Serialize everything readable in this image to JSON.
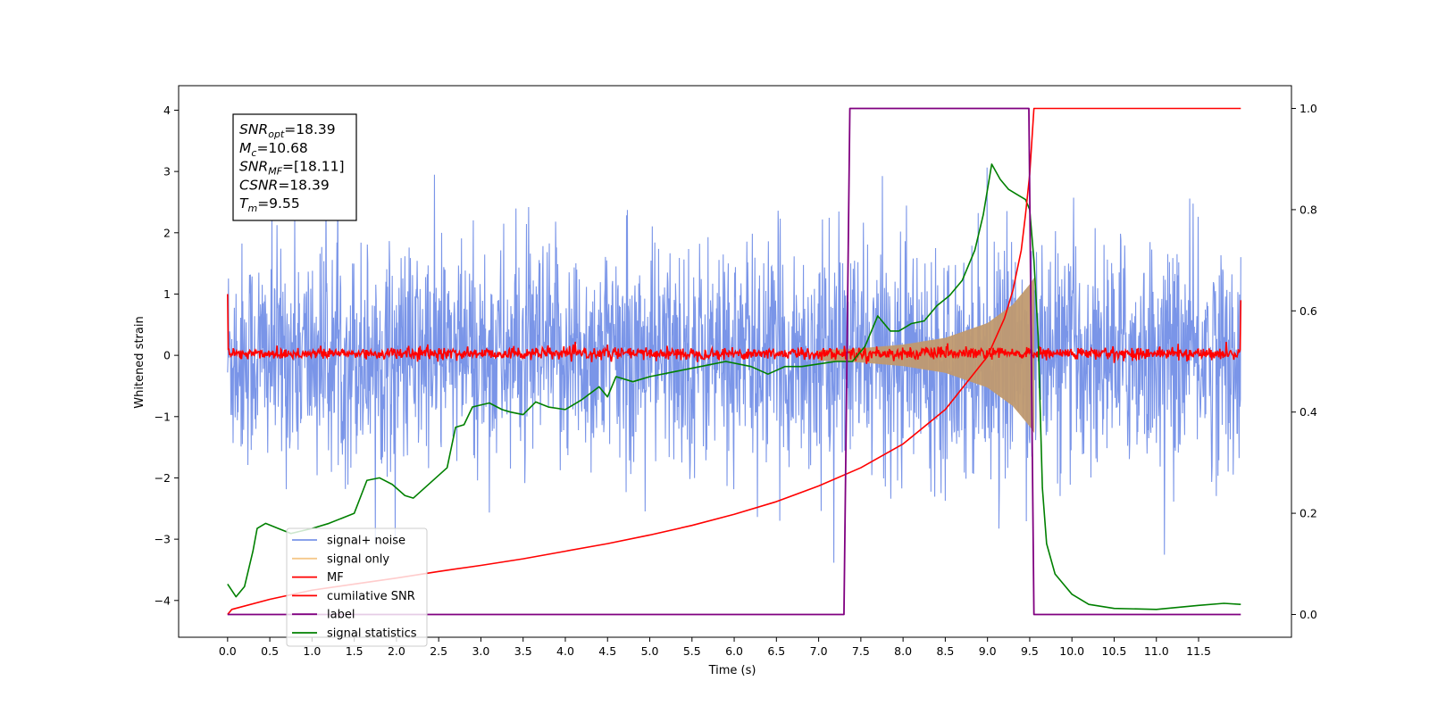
{
  "chart_data": {
    "type": "line",
    "title": "",
    "xlabel": "Time (s)",
    "ylabel": "Whitened strain",
    "xlim": [
      -0.58,
      12.6
    ],
    "ylim": [
      -4.6,
      4.4
    ],
    "y2lim": [
      -0.045,
      1.045
    ],
    "x_ticks": [
      "0.0",
      "0.5",
      "1.0",
      "1.5",
      "2.0",
      "2.5",
      "3.0",
      "3.5",
      "4.0",
      "4.5",
      "5.0",
      "5.5",
      "6.0",
      "6.5",
      "7.0",
      "7.5",
      "8.0",
      "8.5",
      "9.0",
      "9.5",
      "10.0",
      "10.5",
      "11.0",
      "11.5"
    ],
    "y_ticks": [
      "4",
      "3",
      "2",
      "1",
      "0",
      "−1",
      "−2",
      "−3",
      "−4"
    ],
    "y2_ticks": [
      "1.0",
      "0.8",
      "0.6",
      "0.4",
      "0.2",
      "0.0"
    ],
    "grid": false,
    "legend_position": "lower-left",
    "annotation": {
      "lines": [
        {
          "sym": "SNR",
          "sub": "opt",
          "val": "=18.39"
        },
        {
          "sym": "M",
          "sub": "c",
          "val": "=10.68"
        },
        {
          "sym": "SNR",
          "sub": "MF",
          "val": "=[18.11]"
        },
        {
          "sym": "CSNR",
          "sub": "",
          "val": "=18.39"
        },
        {
          "sym": "T",
          "sub": "m",
          "val": "=9.55"
        }
      ]
    },
    "series": [
      {
        "name": "signal+ noise",
        "color": "#7a95e8",
        "axis": "left",
        "description_values": {
          "x_range": [
            0.0,
            12.0
          ],
          "noise_std": 0.9,
          "spike_max": 4.0,
          "spike_min": -4.15
        }
      },
      {
        "name": "signal only",
        "color": "#f5c88a",
        "axis": "left",
        "envelope": {
          "x": [
            7.0,
            7.5,
            8.0,
            8.5,
            9.0,
            9.3,
            9.5,
            9.55
          ],
          "amp": [
            0.08,
            0.11,
            0.17,
            0.28,
            0.52,
            0.82,
            1.15,
            1.25
          ]
        }
      },
      {
        "name": "MF",
        "color": "#ff0000",
        "axis": "left",
        "values": {
          "x_start": 0.0,
          "x_end": 12.0,
          "start_value": 1.0,
          "end_value": 0.9,
          "noise_std": 0.05
        }
      },
      {
        "name": "cumilative SNR",
        "color": "#ff0000",
        "axis": "right",
        "points": [
          [
            0.0,
            0.0
          ],
          [
            0.05,
            0.01
          ],
          [
            0.5,
            0.03
          ],
          [
            1.0,
            0.048
          ],
          [
            1.5,
            0.06
          ],
          [
            2.0,
            0.072
          ],
          [
            2.5,
            0.085
          ],
          [
            3.0,
            0.097
          ],
          [
            3.5,
            0.11
          ],
          [
            4.0,
            0.125
          ],
          [
            4.5,
            0.14
          ],
          [
            5.0,
            0.157
          ],
          [
            5.5,
            0.176
          ],
          [
            6.0,
            0.198
          ],
          [
            6.5,
            0.223
          ],
          [
            7.0,
            0.254
          ],
          [
            7.5,
            0.29
          ],
          [
            8.0,
            0.337
          ],
          [
            8.5,
            0.405
          ],
          [
            9.0,
            0.51
          ],
          [
            9.2,
            0.585
          ],
          [
            9.3,
            0.64
          ],
          [
            9.4,
            0.72
          ],
          [
            9.45,
            0.79
          ],
          [
            9.5,
            0.87
          ],
          [
            9.55,
            1.0
          ],
          [
            12.0,
            1.0
          ]
        ]
      },
      {
        "name": "label",
        "color": "#800080",
        "axis": "right",
        "points": [
          [
            0.0,
            0.0
          ],
          [
            7.3,
            0.0
          ],
          [
            7.37,
            1.0
          ],
          [
            9.49,
            1.0
          ],
          [
            9.55,
            0.0
          ],
          [
            12.0,
            0.0
          ]
        ]
      },
      {
        "name": "signal statistics",
        "color": "#008000",
        "axis": "right",
        "points": [
          [
            0.0,
            0.06
          ],
          [
            0.1,
            0.035
          ],
          [
            0.2,
            0.055
          ],
          [
            0.3,
            0.125
          ],
          [
            0.35,
            0.17
          ],
          [
            0.45,
            0.18
          ],
          [
            0.6,
            0.17
          ],
          [
            0.75,
            0.16
          ],
          [
            1.0,
            0.17
          ],
          [
            1.2,
            0.18
          ],
          [
            1.5,
            0.2
          ],
          [
            1.65,
            0.265
          ],
          [
            1.8,
            0.27
          ],
          [
            1.95,
            0.257
          ],
          [
            2.1,
            0.235
          ],
          [
            2.2,
            0.23
          ],
          [
            2.4,
            0.26
          ],
          [
            2.6,
            0.29
          ],
          [
            2.7,
            0.37
          ],
          [
            2.8,
            0.375
          ],
          [
            2.9,
            0.41
          ],
          [
            3.1,
            0.418
          ],
          [
            3.25,
            0.405
          ],
          [
            3.35,
            0.4
          ],
          [
            3.5,
            0.395
          ],
          [
            3.65,
            0.42
          ],
          [
            3.8,
            0.41
          ],
          [
            4.0,
            0.405
          ],
          [
            4.2,
            0.425
          ],
          [
            4.4,
            0.45
          ],
          [
            4.5,
            0.43
          ],
          [
            4.6,
            0.47
          ],
          [
            4.8,
            0.46
          ],
          [
            5.0,
            0.47
          ],
          [
            5.3,
            0.48
          ],
          [
            5.6,
            0.49
          ],
          [
            5.9,
            0.5
          ],
          [
            6.2,
            0.49
          ],
          [
            6.4,
            0.475
          ],
          [
            6.6,
            0.49
          ],
          [
            6.8,
            0.49
          ],
          [
            7.0,
            0.495
          ],
          [
            7.2,
            0.5
          ],
          [
            7.4,
            0.5
          ],
          [
            7.55,
            0.53
          ],
          [
            7.7,
            0.59
          ],
          [
            7.85,
            0.56
          ],
          [
            7.95,
            0.56
          ],
          [
            8.1,
            0.575
          ],
          [
            8.25,
            0.58
          ],
          [
            8.4,
            0.61
          ],
          [
            8.55,
            0.63
          ],
          [
            8.7,
            0.66
          ],
          [
            8.85,
            0.72
          ],
          [
            8.95,
            0.79
          ],
          [
            9.05,
            0.89
          ],
          [
            9.15,
            0.86
          ],
          [
            9.25,
            0.84
          ],
          [
            9.35,
            0.83
          ],
          [
            9.45,
            0.82
          ],
          [
            9.5,
            0.8
          ],
          [
            9.55,
            0.7
          ],
          [
            9.6,
            0.55
          ],
          [
            9.65,
            0.25
          ],
          [
            9.7,
            0.14
          ],
          [
            9.8,
            0.08
          ],
          [
            9.9,
            0.06
          ],
          [
            10.0,
            0.04
          ],
          [
            10.2,
            0.02
          ],
          [
            10.5,
            0.012
          ],
          [
            11.0,
            0.01
          ],
          [
            11.5,
            0.018
          ],
          [
            11.8,
            0.022
          ],
          [
            12.0,
            0.02
          ]
        ]
      }
    ]
  }
}
